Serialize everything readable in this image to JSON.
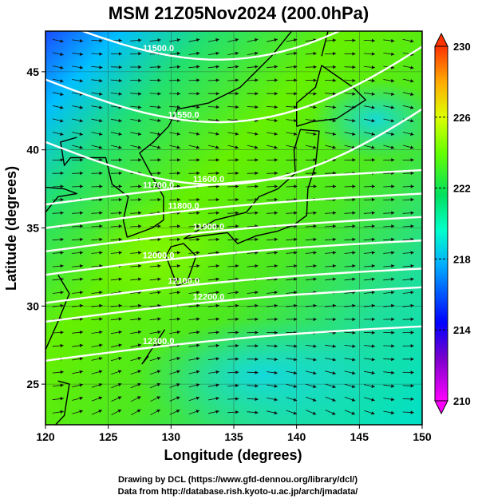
{
  "chart_data": {
    "type": "heatmap",
    "title": "MSM 21Z05Nov2024 (200.0hPa)",
    "xlabel": "Longitude (degrees)",
    "ylabel": "Latitude  (degrees)",
    "xlim": [
      120,
      150
    ],
    "ylim": [
      22.4,
      47.6
    ],
    "x_ticks": [
      "120",
      "125",
      "130",
      "135",
      "140",
      "145",
      "150"
    ],
    "y_ticks": [
      "25",
      "30",
      "35",
      "40",
      "45"
    ],
    "grid": true,
    "colorbar": {
      "min": 210,
      "max": 230,
      "ticks": [
        "210",
        "214",
        "218",
        "222",
        "226",
        "230"
      ],
      "stops": [
        "#ff00ff",
        "#6600cc",
        "#0000ff",
        "#00aaff",
        "#00ffcc",
        "#00e060",
        "#66ff00",
        "#ddff00",
        "#ffaa00",
        "#ff3300"
      ]
    },
    "contours": [
      {
        "label": "11500.0",
        "lat_at_120": 48.5
      },
      {
        "label": "11550.0",
        "lat_at_120": 44.5
      },
      {
        "label": "11600.0",
        "lat_at_120": 40.5
      },
      {
        "label": "11700.0",
        "lat_at_120": 36.5
      },
      {
        "label": "11800.0",
        "lat_at_120": 35.0
      },
      {
        "label": "11900.0",
        "lat_at_120": 33.5
      },
      {
        "label": "12000.0",
        "lat_at_120": 32.0
      },
      {
        "label": "12100.0",
        "lat_at_120": 30.2
      },
      {
        "label": "12200.0",
        "lat_at_120": 29.0
      },
      {
        "label": "12300.0",
        "lat_at_120": 26.5
      }
    ]
  },
  "credits": {
    "line1": "Drawing by DCL (https://www.gfd-dennou.org/library/dcl/)",
    "line2": "Data from http://database.rish.kyoto-u.ac.jp/arch/jmadata/"
  }
}
